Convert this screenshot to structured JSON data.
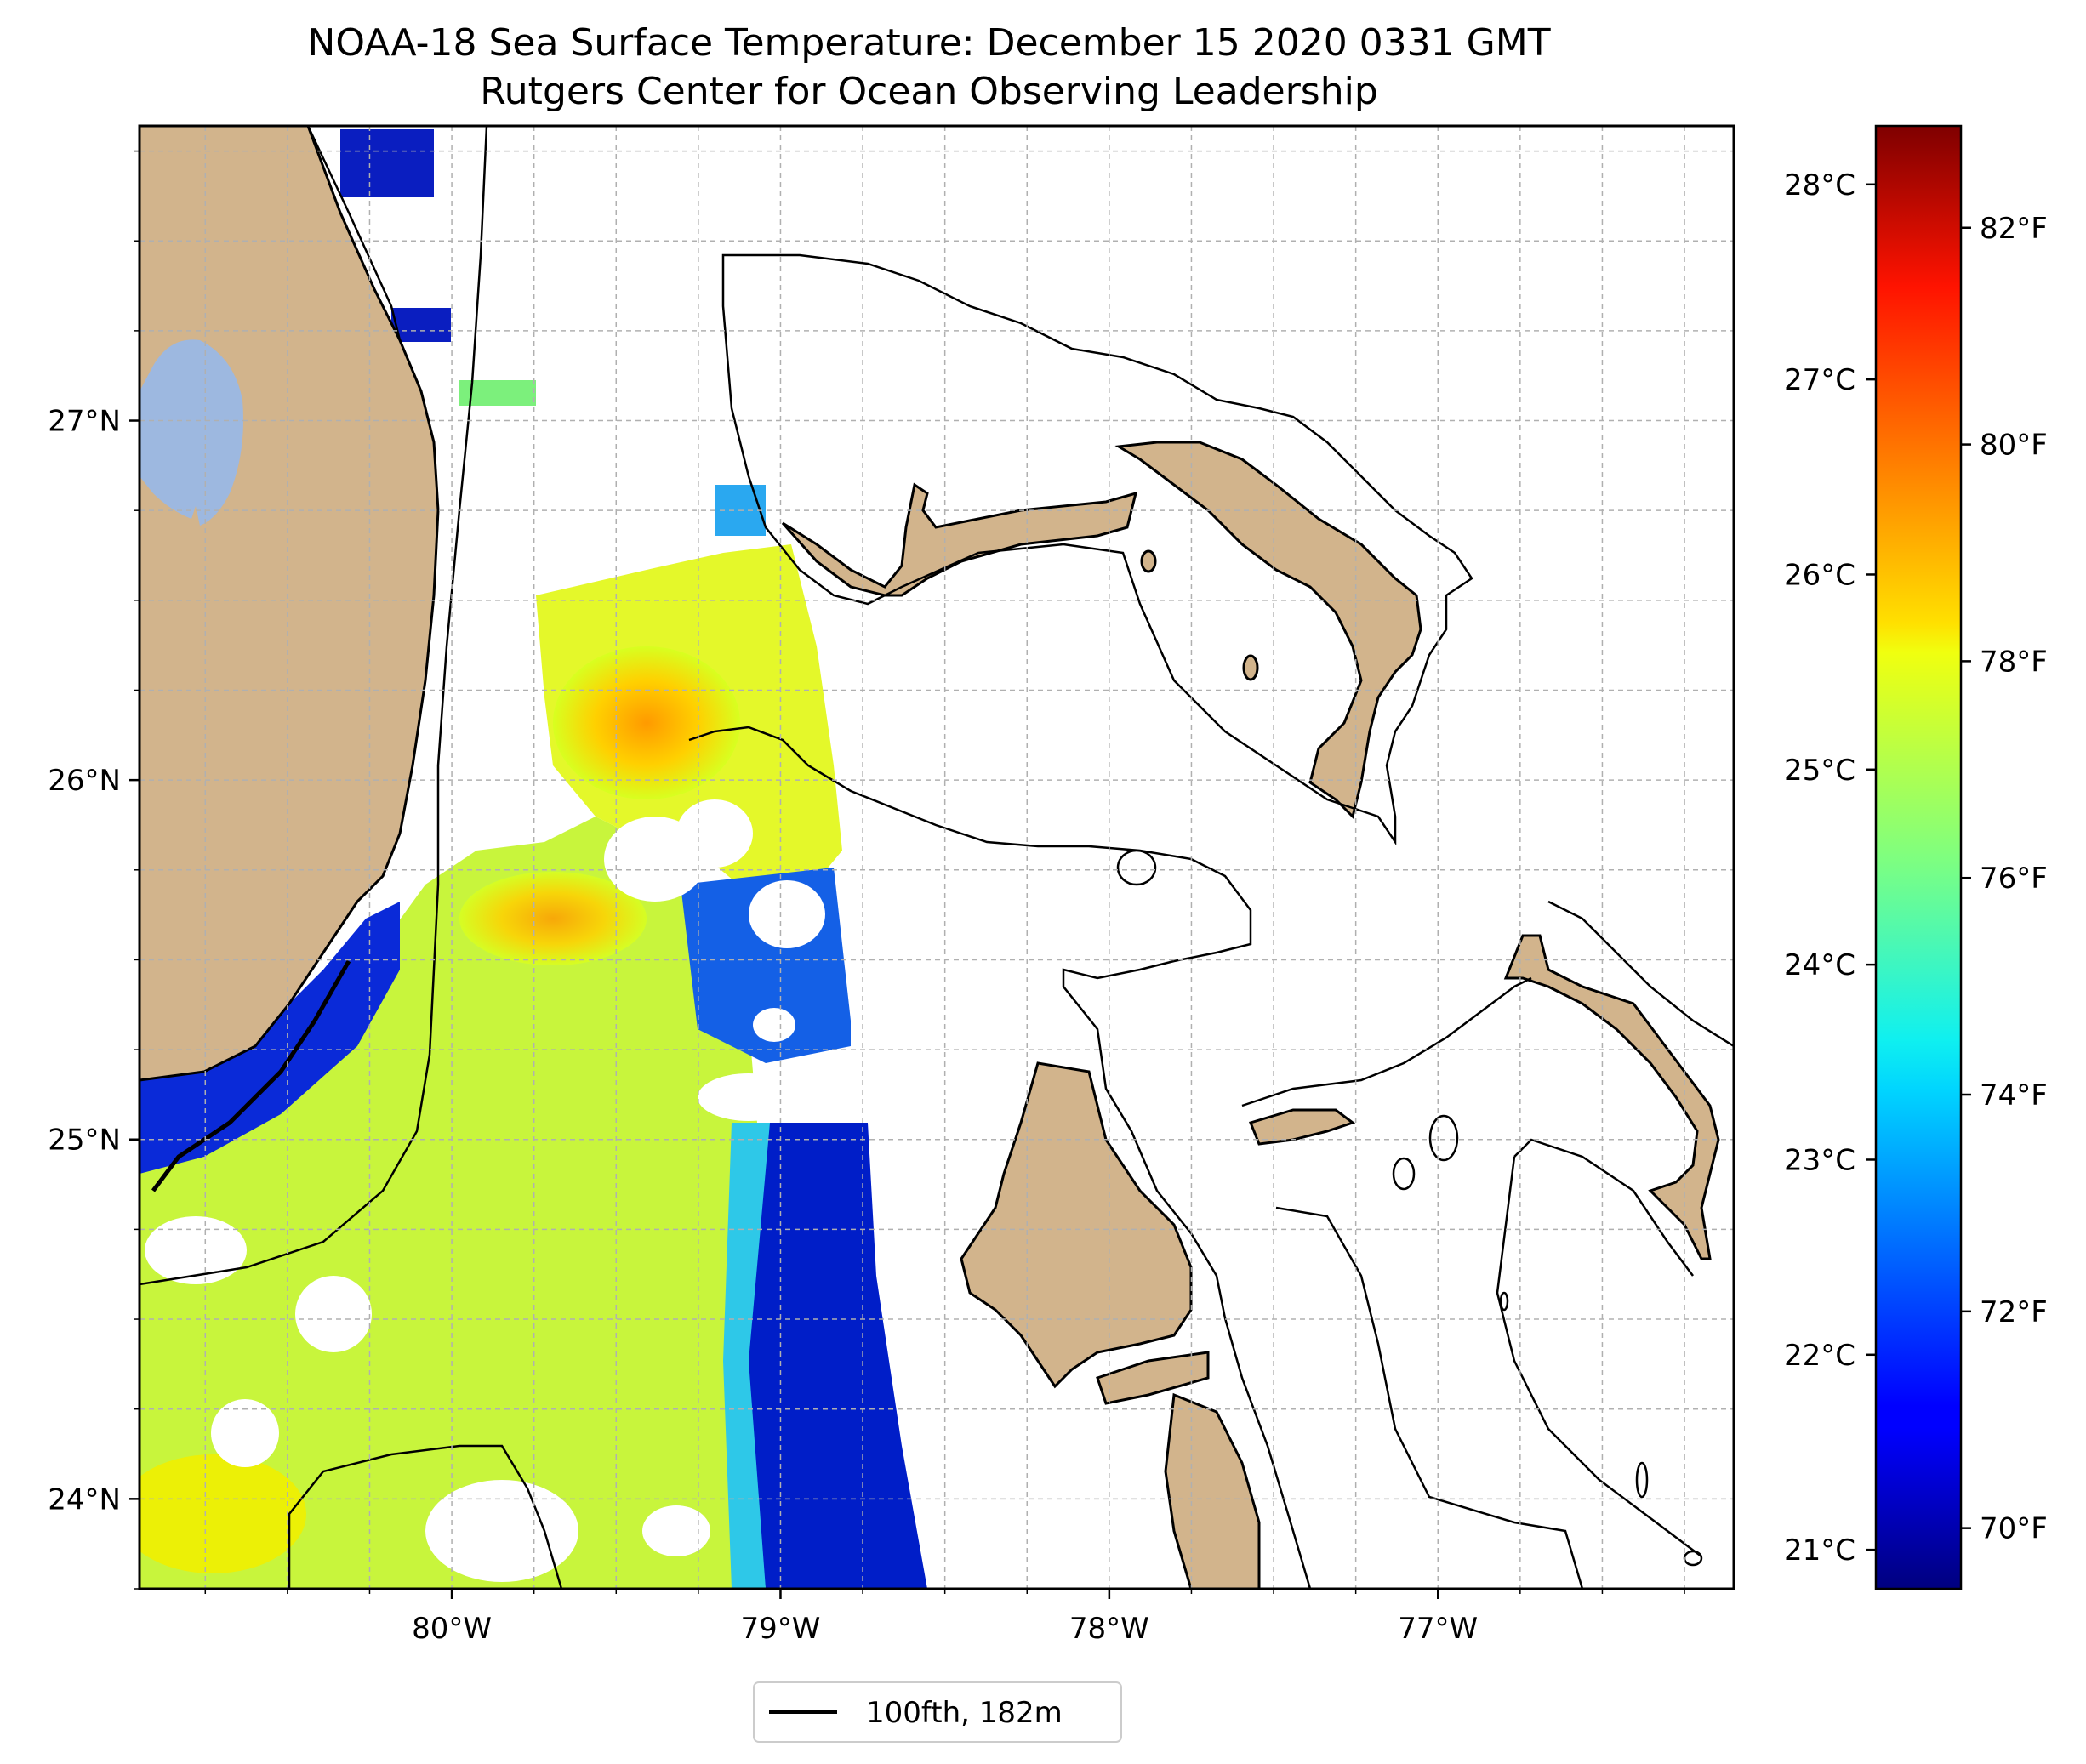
{
  "title": "NOAA-18 Sea Surface Temperature: December 15 2020 0331 GMT",
  "subtitle": "Rutgers Center for Ocean Observing Leadership",
  "map": {
    "lon_range": [
      -80.95,
      -76.1
    ],
    "lat_range": [
      23.75,
      27.82
    ],
    "lon_ticks": [
      {
        "value": -80,
        "label": "80°W"
      },
      {
        "value": -79,
        "label": "79°W"
      },
      {
        "value": -78,
        "label": "78°W"
      },
      {
        "value": -77,
        "label": "77°W"
      }
    ],
    "lat_ticks": [
      {
        "value": 27,
        "label": "27°N"
      },
      {
        "value": 26,
        "label": "26°N"
      },
      {
        "value": 25,
        "label": "25°N"
      },
      {
        "value": 24,
        "label": "24°N"
      }
    ],
    "grid": true,
    "colors": {
      "land": "#d2b48c",
      "lake": "#9db8e0",
      "contour": "#000000",
      "grid": "#b0b0b0"
    }
  },
  "colorbar": {
    "colormap": "jet",
    "celsius_range": [
      20.8,
      28.3
    ],
    "celsius_ticks": [
      {
        "value": 28,
        "label": "28°C"
      },
      {
        "value": 27,
        "label": "27°C"
      },
      {
        "value": 26,
        "label": "26°C"
      },
      {
        "value": 25,
        "label": "25°C"
      },
      {
        "value": 24,
        "label": "24°C"
      },
      {
        "value": 23,
        "label": "23°C"
      },
      {
        "value": 22,
        "label": "22°C"
      },
      {
        "value": 21,
        "label": "21°C"
      }
    ],
    "fahrenheit_ticks": [
      {
        "value": 82,
        "label": "82°F"
      },
      {
        "value": 80,
        "label": "80°F"
      },
      {
        "value": 78,
        "label": "78°F"
      },
      {
        "value": 76,
        "label": "76°F"
      },
      {
        "value": 74,
        "label": "74°F"
      },
      {
        "value": 72,
        "label": "72°F"
      },
      {
        "value": 70,
        "label": "70°F"
      }
    ]
  },
  "legend": {
    "label": "100fth, 182m",
    "position": "bottom-center"
  }
}
